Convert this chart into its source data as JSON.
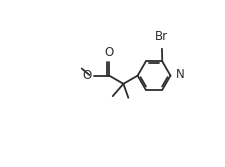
{
  "bg_color": "#ffffff",
  "line_color": "#2d2d2d",
  "line_width": 1.3,
  "font_size": 8.5,
  "figsize": [
    2.26,
    1.67
  ],
  "dpi": 100,
  "xlim": [
    0.0,
    6.5
  ],
  "ylim": [
    0.0,
    5.2
  ]
}
